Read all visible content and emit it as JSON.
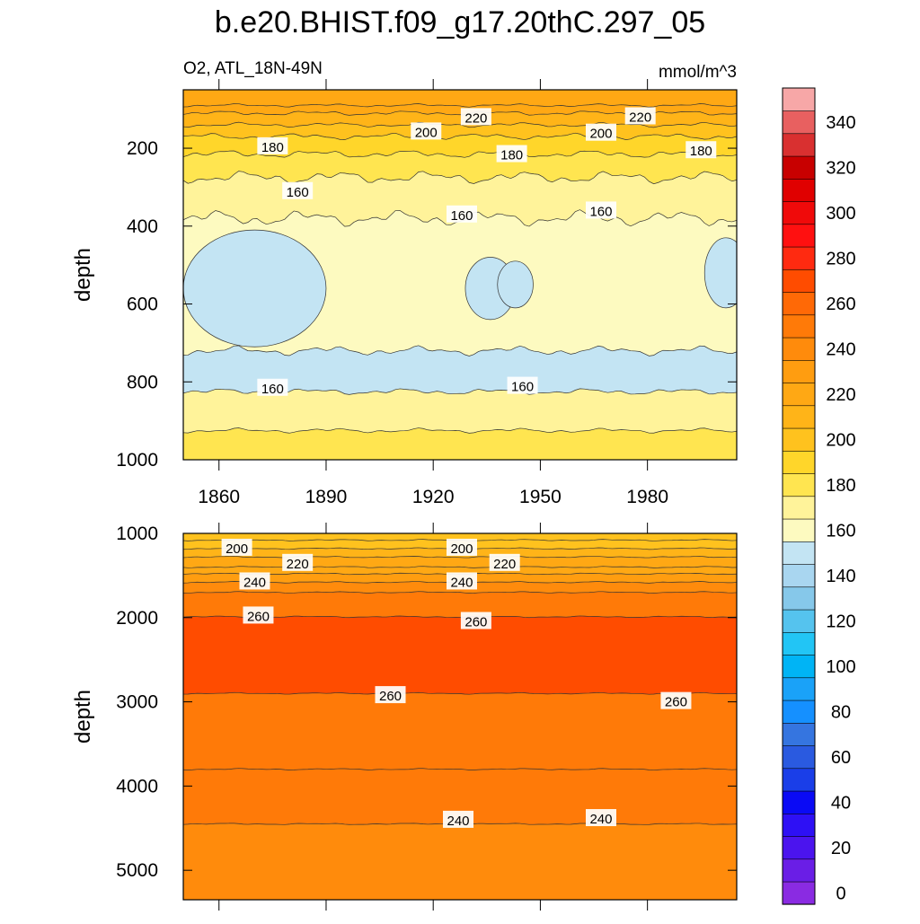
{
  "title": "b.e20.BHIST.f09_g17.20thC.297_05",
  "chart_data": {
    "type": "contour",
    "title": "b.e20.BHIST.f09_g17.20thC.297_05",
    "variable": "O2, ATL_18N-49N",
    "units": "mmol/m^3",
    "colorbar": {
      "tick_labels": [
        "0",
        "20",
        "40",
        "60",
        "80",
        "100",
        "120",
        "140",
        "160",
        "180",
        "200",
        "220",
        "240",
        "260",
        "280",
        "300",
        "320",
        "340"
      ],
      "colors": [
        "#8a2be2",
        "#6a1ee6",
        "#4b14ee",
        "#2e10f5",
        "#0a0af5",
        "#1a3ee8",
        "#2a5ae0",
        "#3575e0",
        "#1590ff",
        "#1aa2f8",
        "#00b4f5",
        "#22c5f5",
        "#55c3ee",
        "#86c8ea",
        "#a9d6f0",
        "#c3e4f3",
        "#fdfac0",
        "#fff39a",
        "#ffe550",
        "#ffd62a",
        "#ffc21e",
        "#ffb418",
        "#ffa814",
        "#ff9d10",
        "#ff8b0c",
        "#ff7a08",
        "#ff6906",
        "#ff4c00",
        "#ff2a10",
        "#ff1010",
        "#f00a0a",
        "#e00000",
        "#c80000",
        "#d93030",
        "#e86060",
        "#f7a7a7"
      ]
    },
    "panels": [
      {
        "name": "upper",
        "ylabel": "depth",
        "ylim": [
          1000,
          50
        ],
        "y_reversed": true,
        "yticks": [
          200,
          400,
          600,
          800,
          1000
        ],
        "xlim": [
          1850,
          2005
        ],
        "xticks": [
          1860,
          1890,
          1920,
          1950,
          1980
        ],
        "contour_labels": [
          {
            "text": "220",
            "x": 1932,
            "y": 120
          },
          {
            "text": "220",
            "x": 1978,
            "y": 118
          },
          {
            "text": "200",
            "x": 1918,
            "y": 157
          },
          {
            "text": "200",
            "x": 1967,
            "y": 160
          },
          {
            "text": "180",
            "x": 1875,
            "y": 195
          },
          {
            "text": "180",
            "x": 1942,
            "y": 215
          },
          {
            "text": "180",
            "x": 1995,
            "y": 205
          },
          {
            "text": "160",
            "x": 1882,
            "y": 310
          },
          {
            "text": "160",
            "x": 1928,
            "y": 370
          },
          {
            "text": "160",
            "x": 1967,
            "y": 360
          },
          {
            "text": "160",
            "x": 1875,
            "y": 815
          },
          {
            "text": "160",
            "x": 1945,
            "y": 810
          }
        ]
      },
      {
        "name": "lower",
        "ylabel": "depth",
        "ylim": [
          5350,
          1000
        ],
        "y_reversed": true,
        "yticks": [
          1000,
          2000,
          3000,
          4000,
          5000
        ],
        "xlim": [
          1850,
          2005
        ],
        "contour_labels": [
          {
            "text": "200",
            "x": 1865,
            "y": 1170
          },
          {
            "text": "200",
            "x": 1928,
            "y": 1170
          },
          {
            "text": "220",
            "x": 1882,
            "y": 1350
          },
          {
            "text": "220",
            "x": 1940,
            "y": 1350
          },
          {
            "text": "240",
            "x": 1870,
            "y": 1570
          },
          {
            "text": "240",
            "x": 1928,
            "y": 1570
          },
          {
            "text": "260",
            "x": 1871,
            "y": 1975
          },
          {
            "text": "260",
            "x": 1932,
            "y": 2040
          },
          {
            "text": "260",
            "x": 1908,
            "y": 2920
          },
          {
            "text": "260",
            "x": 1988,
            "y": 2990
          },
          {
            "text": "240",
            "x": 1927,
            "y": 4400
          },
          {
            "text": "240",
            "x": 1967,
            "y": 4380
          }
        ]
      }
    ]
  }
}
